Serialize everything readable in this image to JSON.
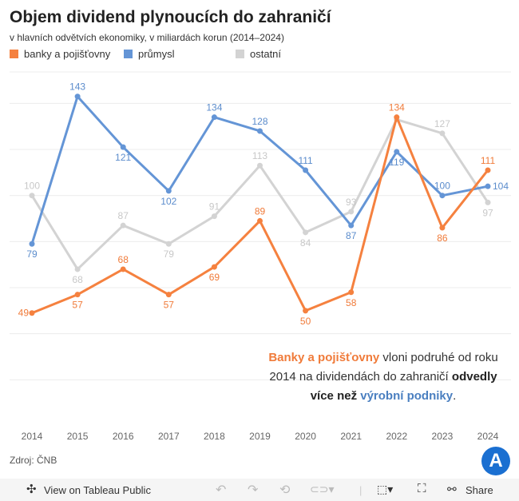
{
  "title": "Objem dividend plynoucích do zahraničí",
  "subtitle": "v hlavních odvětvích ekonomiky, v miliardách korun (2014–2024)",
  "chart_data": {
    "type": "line",
    "categories": [
      "2014",
      "2015",
      "2016",
      "2017",
      "2018",
      "2019",
      "2020",
      "2021",
      "2022",
      "2023",
      "2024"
    ],
    "ylim": [
      0,
      140
    ],
    "grid": true,
    "legend_placement": "top-left",
    "series": [
      {
        "name": "ostatní",
        "color": "#d3d3d3",
        "label_color": "#c8c8c8",
        "values": [
          100,
          68,
          87,
          79,
          91,
          113,
          84,
          93,
          133,
          127,
          97
        ],
        "labels": [
          "100",
          "68",
          "87",
          "79",
          "91",
          "113",
          "84",
          "93",
          "",
          "127",
          "97"
        ],
        "label_pos": [
          "above",
          "below",
          "above",
          "below",
          "above",
          "above",
          "below",
          "above",
          "above",
          "above",
          "below"
        ]
      },
      {
        "name": "průmysl",
        "color": "#6495d6",
        "label_color": "#5b8ccc",
        "values": [
          79,
          143,
          121,
          102,
          134,
          128,
          111,
          87,
          119,
          100,
          104
        ],
        "labels": [
          "79",
          "143",
          "121",
          "102",
          "134",
          "128",
          "111",
          "87",
          "119",
          "100",
          "104"
        ],
        "label_pos": [
          "below",
          "above",
          "below",
          "below",
          "above",
          "above",
          "above",
          "below",
          "below",
          "above",
          "right"
        ]
      },
      {
        "name": "banky a pojišťovny",
        "color": "#f5813f",
        "label_color": "#f07b3a",
        "values": [
          49,
          57,
          68,
          57,
          69,
          89,
          50,
          58,
          134,
          86,
          111
        ],
        "labels": [
          "49",
          "57",
          "68",
          "57",
          "69",
          "89",
          "50",
          "58",
          "134",
          "86",
          "111"
        ],
        "label_pos": [
          "left",
          "below",
          "above",
          "below",
          "below",
          "above",
          "below",
          "below",
          "above",
          "below",
          "above"
        ]
      }
    ]
  },
  "legend": [
    "banky a pojišťovny",
    "průmysl",
    "ostatní"
  ],
  "note": {
    "a": "Banky a pojišťovny",
    "b": " vloni podruhé od roku 2014 na dividendách do zahraničí ",
    "c": "odvedly více než ",
    "d": "výrobní podniky",
    "e": "."
  },
  "source": "Zdroj: ČNB",
  "logo": "A",
  "toolbar": {
    "view": "View on Tableau Public",
    "share": "Share"
  }
}
